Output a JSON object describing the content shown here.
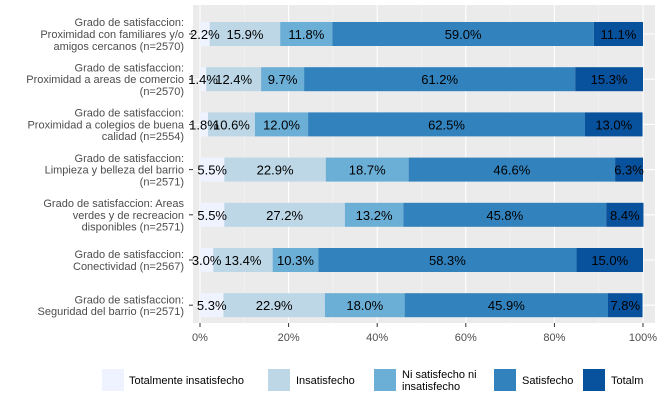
{
  "chart_data": {
    "type": "bar",
    "orientation": "horizontal",
    "stacked": true,
    "categories": [
      "Grado de satisfaccion:|Proximidad con familiares y/o|amigos cercanos (n=2570)",
      "Grado de satisfaccion:|Proximidad a areas de comercio|(n=2570)",
      "Grado de satisfaccion:|Proximidad a colegios de buena|calidad (n=2554)",
      "Grado de satisfaccion:|Limpieza y belleza del barrio|(n=2571)",
      "Grado de satisfaccion:  Areas|verdes y de recreacion|disponibles (n=2571)",
      "Grado de satisfaccion:|Conectividad (n=2567)",
      "Grado de satisfaccion:|Seguridad del barrio (n=2571)"
    ],
    "series": [
      {
        "name": "Totalmente insatisfecho",
        "color": "#eff3ff",
        "values": [
          2.2,
          1.4,
          1.8,
          5.5,
          5.5,
          3.0,
          5.3
        ],
        "labels": [
          "2.2%",
          "1.4%",
          "1.8%",
          "5.5%",
          "5.5%",
          "3.0%",
          "5.3%"
        ]
      },
      {
        "name": "Insatisfecho",
        "color": "#bdd7e7",
        "values": [
          15.9,
          12.4,
          10.6,
          22.9,
          27.2,
          13.4,
          22.9
        ],
        "labels": [
          "15.9%",
          "12.4%",
          "10.6%",
          "22.9%",
          "27.2%",
          "13.4%",
          "22.9%"
        ]
      },
      {
        "name": "Ni satisfecho ni|insatisfecho",
        "color": "#6baed6",
        "values": [
          11.8,
          9.7,
          12.0,
          18.7,
          13.2,
          10.3,
          18.0
        ],
        "labels": [
          "11.8%",
          "9.7%",
          "12.0%",
          "18.7%",
          "13.2%",
          "10.3%",
          "18.0%"
        ]
      },
      {
        "name": "Satisfecho",
        "color": "#3182bd",
        "values": [
          59.0,
          61.2,
          62.5,
          46.6,
          45.8,
          58.3,
          45.9
        ],
        "labels": [
          "59.0%",
          "61.2%",
          "62.5%",
          "46.6%",
          "45.8%",
          "58.3%",
          "45.9%"
        ]
      },
      {
        "name": "Totalm",
        "color": "#08519c",
        "values": [
          11.1,
          15.3,
          13.0,
          6.3,
          8.4,
          15.0,
          7.8
        ],
        "labels": [
          "11.1%",
          "15.3%",
          "13.0%",
          "6.3%",
          "8.4%",
          "15.0%",
          "7.8%"
        ]
      }
    ],
    "xlim": [
      0,
      100
    ],
    "xticks": [
      0,
      20,
      40,
      60,
      80,
      100
    ],
    "xtick_labels": [
      "0%",
      "20%",
      "40%",
      "60%",
      "80%",
      "100%"
    ],
    "title": "",
    "xlabel": "",
    "ylabel": "",
    "grid": true,
    "legend_position": "bottom",
    "panel_background": "#ebebeb"
  }
}
